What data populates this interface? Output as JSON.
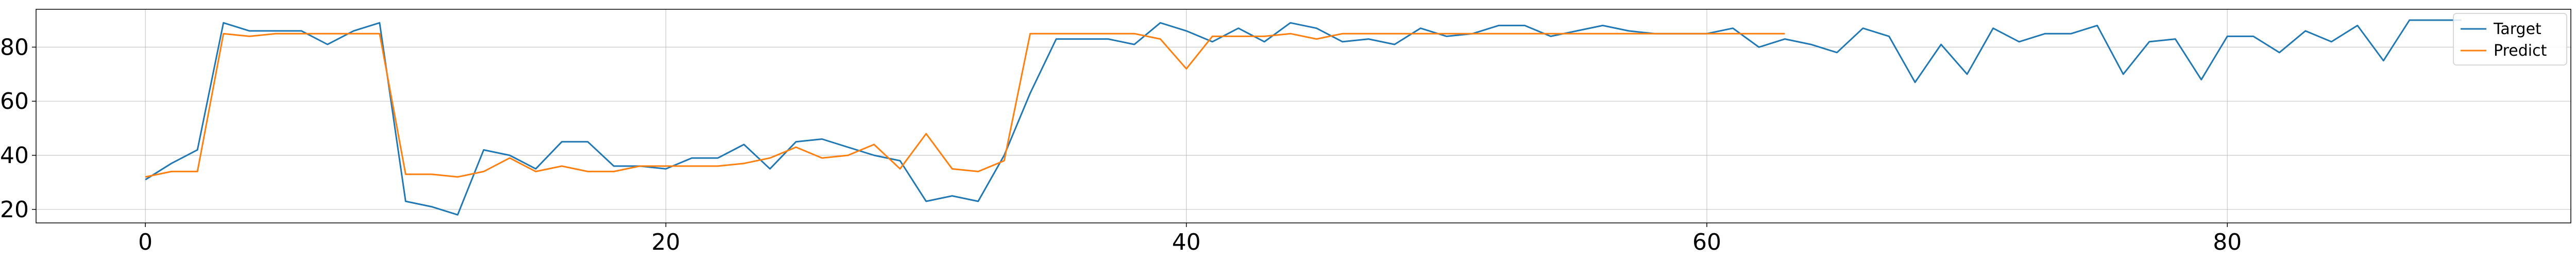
{
  "chart_data": {
    "type": "line",
    "title": "",
    "xlabel": "",
    "ylabel": "",
    "xlim": [
      -4.2,
      93.2
    ],
    "ylim": [
      15,
      94
    ],
    "xticks": [
      0,
      20,
      40,
      60,
      80
    ],
    "yticks": [
      20,
      40,
      60,
      80
    ],
    "grid": true,
    "legend_position": "top-right",
    "series": [
      {
        "name": "Target",
        "color": "#1f77b4",
        "x": [
          0,
          1,
          2,
          3,
          4,
          5,
          6,
          7,
          8,
          9,
          10,
          11,
          12,
          13,
          14,
          15,
          16,
          17,
          18,
          19,
          20,
          21,
          22,
          23,
          24,
          25,
          26,
          27,
          28,
          29,
          30,
          31,
          32,
          33,
          34,
          35,
          36,
          37,
          38,
          39,
          40,
          41,
          42,
          43,
          44,
          45,
          46,
          47,
          48,
          49,
          50,
          51,
          52,
          53,
          54,
          55,
          56,
          57,
          58,
          59,
          60,
          61,
          62,
          63,
          64,
          65,
          66,
          67,
          68,
          69,
          70,
          71,
          72,
          73,
          74,
          75,
          76,
          77,
          78,
          79,
          80,
          81,
          82,
          83,
          84,
          85,
          86,
          87,
          88,
          89
        ],
        "values": [
          31,
          37,
          42,
          89,
          86,
          86,
          86,
          81,
          86,
          89,
          23,
          21,
          18,
          42,
          40,
          35,
          45,
          45,
          36,
          36,
          35,
          39,
          39,
          44,
          35,
          45,
          46,
          43,
          40,
          38,
          23,
          25,
          23,
          40,
          63,
          83,
          83,
          83,
          81,
          89,
          86,
          82,
          87,
          82,
          89,
          87,
          82,
          83,
          81,
          87,
          84,
          85,
          88,
          88,
          84,
          86,
          88,
          86,
          85,
          85,
          85,
          87,
          80,
          83,
          81,
          78,
          87,
          84,
          67,
          81,
          70,
          87,
          82,
          85,
          85,
          88,
          70,
          82,
          83,
          68,
          84,
          84,
          78,
          86,
          82,
          88,
          75,
          90,
          90,
          90
        ]
      },
      {
        "name": "Predict",
        "color": "#ff7f0e",
        "x": [
          0,
          1,
          2,
          3,
          4,
          5,
          6,
          7,
          8,
          9,
          10,
          11,
          12,
          13,
          14,
          15,
          16,
          17,
          18,
          19,
          20,
          21,
          22,
          23,
          24,
          25,
          26,
          27,
          28,
          29,
          30,
          31,
          32,
          33,
          34,
          35,
          36,
          37,
          38,
          39,
          40,
          41,
          42,
          43,
          44,
          45,
          46,
          47,
          48,
          49,
          50,
          51,
          52,
          53,
          54,
          55,
          56,
          57,
          58,
          59,
          60,
          61,
          62,
          63
        ],
        "values": [
          32,
          34,
          34,
          85,
          84,
          85,
          85,
          85,
          85,
          85,
          33,
          33,
          32,
          34,
          39,
          34,
          36,
          34,
          34,
          36,
          36,
          36,
          36,
          37,
          39,
          43,
          39,
          40,
          44,
          35,
          48,
          35,
          34,
          38,
          85,
          85,
          85,
          85,
          85,
          83,
          72,
          84,
          84,
          84,
          85,
          83,
          85,
          85,
          85,
          85,
          85,
          85,
          85,
          85,
          85,
          85,
          85,
          85,
          85,
          85,
          85,
          85,
          85,
          85
        ]
      }
    ]
  }
}
